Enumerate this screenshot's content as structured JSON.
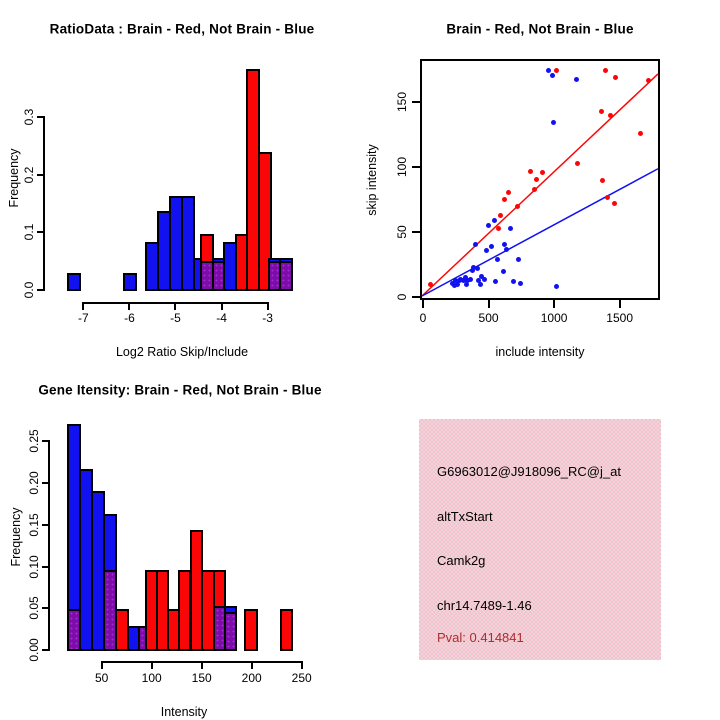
{
  "colors": {
    "red": "#fb0606",
    "blue": "#1212f0",
    "purple": "#7d0ca8",
    "purple_dot": "#a22ad4",
    "pink_bg": "#f5c0cc",
    "pink_bg_alt": "#edd6dc",
    "pval_text": "#b02c2c",
    "axis": "#000000"
  },
  "chart_data": [
    {
      "id": "ratio_hist",
      "type": "histogram",
      "title": "RatioData : Brain - Red, Not Brain - Blue",
      "xlabel": "Log2 Ratio Skip/Include",
      "ylabel": "Frequency",
      "legend_note": "Brain = red, Not Brain = blue, overlap = purple",
      "xlim": [
        -7.485,
        -2.21
      ],
      "ylim": [
        0,
        0.385
      ],
      "xticks": [
        -7,
        -6,
        -5,
        -4,
        -3
      ],
      "xtick_labels": [
        "-7",
        "-6",
        "-5",
        "-4",
        "-3"
      ],
      "ytick_vals": [
        0,
        0.1,
        0.2,
        0.3
      ],
      "ytick_labels": [
        "0.0",
        "0.1",
        "0.2",
        "0.3"
      ],
      "bars": [
        {
          "x0": -7.32,
          "x1": -7.06,
          "segments": [
            {
              "color": "blue",
              "top": 0.027
            }
          ]
        },
        {
          "x0": -6.1,
          "x1": -5.84,
          "segments": [
            {
              "color": "blue",
              "top": 0.027
            }
          ]
        },
        {
          "x0": -5.62,
          "x1": -5.36,
          "segments": [
            {
              "color": "blue",
              "top": 0.081
            }
          ]
        },
        {
          "x0": -5.36,
          "x1": -5.1,
          "segments": [
            {
              "color": "blue",
              "top": 0.135
            }
          ]
        },
        {
          "x0": -5.1,
          "x1": -4.84,
          "segments": [
            {
              "color": "blue",
              "top": 0.162
            }
          ]
        },
        {
          "x0": -4.84,
          "x1": -4.58,
          "segments": [
            {
              "color": "blue",
              "top": 0.162
            }
          ]
        },
        {
          "x0": -4.58,
          "x1": -4.32,
          "segments": [
            {
              "color": "blue",
              "top": 0.054
            }
          ]
        },
        {
          "x0": -4.42,
          "x1": -4.17,
          "segments": [
            {
              "color": "purple",
              "top": 0.048
            },
            {
              "color": "red",
              "top": 0.095
            }
          ]
        },
        {
          "x0": -4.17,
          "x1": -3.92,
          "segments": [
            {
              "color": "purple",
              "top": 0.048
            },
            {
              "color": "blue",
              "top": 0.054
            }
          ]
        },
        {
          "x0": -3.92,
          "x1": -3.67,
          "segments": [
            {
              "color": "blue",
              "top": 0.081
            }
          ]
        },
        {
          "x0": -3.67,
          "x1": -3.42,
          "segments": [
            {
              "color": "red",
              "top": 0.095
            }
          ]
        },
        {
          "x0": -3.42,
          "x1": -3.16,
          "segments": [
            {
              "color": "red",
              "top": 0.381
            }
          ]
        },
        {
          "x0": -3.16,
          "x1": -2.9,
          "segments": [
            {
              "color": "red",
              "top": 0.238
            }
          ]
        },
        {
          "x0": -2.95,
          "x1": -2.7,
          "segments": [
            {
              "color": "purple",
              "top": 0.048
            },
            {
              "color": "blue",
              "top": 0.054
            }
          ]
        },
        {
          "x0": -2.7,
          "x1": -2.45,
          "segments": [
            {
              "color": "purple",
              "top": 0.048
            },
            {
              "color": "blue",
              "top": 0.054
            }
          ]
        }
      ]
    },
    {
      "id": "scatter",
      "type": "scatter",
      "title": "Brain - Red, Not Brain - Blue",
      "xlabel": "include intensity",
      "ylabel": "skip intensity",
      "xlim": [
        0,
        1800
      ],
      "ylim": [
        0,
        181
      ],
      "xticks": [
        0,
        500,
        1000,
        1500
      ],
      "xtick_labels": [
        "0",
        "500",
        "1000",
        "1500"
      ],
      "ytick_vals": [
        0,
        50,
        100,
        150
      ],
      "ytick_labels": [
        "0",
        "50",
        "100",
        "150"
      ],
      "series": [
        {
          "name": "Brain",
          "color": "red",
          "points": [
            [
              62,
              9
            ],
            [
              580,
              52
            ],
            [
              600,
              62
            ],
            [
              632,
              74
            ],
            [
              658,
              80
            ],
            [
              725,
              69
            ],
            [
              825,
              96
            ],
            [
              858,
              82
            ],
            [
              870,
              90
            ],
            [
              922,
              95
            ],
            [
              1027,
              174
            ],
            [
              1185,
              102
            ],
            [
              1372,
              142
            ],
            [
              1380,
              89
            ],
            [
              1402,
              174
            ],
            [
              1417,
              76
            ],
            [
              1440,
              139
            ],
            [
              1467,
              71
            ],
            [
              1477,
              168
            ],
            [
              1665,
              125
            ],
            [
              1725,
              166
            ]
          ]
        },
        {
          "name": "Not Brain",
          "color": "blue",
          "points": [
            [
              230,
              10
            ],
            [
              245,
              8
            ],
            [
              258,
              12
            ],
            [
              270,
              9
            ],
            [
              283,
              12
            ],
            [
              295,
              13
            ],
            [
              318,
              12
            ],
            [
              330,
              14
            ],
            [
              340,
              9
            ],
            [
              350,
              12
            ],
            [
              372,
              13
            ],
            [
              385,
              20
            ],
            [
              395,
              22
            ],
            [
              405,
              40
            ],
            [
              420,
              21
            ],
            [
              432,
              12
            ],
            [
              445,
              9
            ],
            [
              457,
              15
            ],
            [
              480,
              13
            ],
            [
              495,
              35
            ],
            [
              510,
              54
            ],
            [
              532,
              38
            ],
            [
              550,
              58
            ],
            [
              562,
              11
            ],
            [
              578,
              28
            ],
            [
              618,
              19
            ],
            [
              628,
              40
            ],
            [
              642,
              36
            ],
            [
              675,
              52
            ],
            [
              700,
              11
            ],
            [
              737,
              28
            ],
            [
              752,
              10
            ],
            [
              962,
              174
            ],
            [
              997,
              170
            ],
            [
              1000,
              134
            ],
            [
              1028,
              7
            ],
            [
              1178,
              167
            ]
          ]
        }
      ],
      "lines": [
        {
          "color": "red",
          "from": [
            0,
            0
          ],
          "to": [
            1800,
            171
          ]
        },
        {
          "color": "blue",
          "from": [
            0,
            0
          ],
          "to": [
            1800,
            98
          ]
        }
      ]
    },
    {
      "id": "gene_hist",
      "type": "histogram",
      "title": "Gene Itensity: Brain - Red, Not Brain - Blue",
      "xlabel": "Intensity",
      "ylabel": "Frequency",
      "legend_note": "Brain = red, Not Brain = blue, overlap = purple",
      "xlim": [
        15.3,
        252.3
      ],
      "ylim": [
        0,
        0.272
      ],
      "xticks": [
        50,
        100,
        150,
        200,
        250
      ],
      "xtick_labels": [
        "50",
        "100",
        "150",
        "200",
        "250"
      ],
      "ytick_vals": [
        0,
        0.05,
        0.1,
        0.15,
        0.2,
        0.25
      ],
      "ytick_labels": [
        "0.00",
        "0.05",
        "0.10",
        "0.15",
        "0.20",
        "0.25"
      ],
      "bars": [
        {
          "x0": 17.5,
          "x1": 29.5,
          "segments": [
            {
              "color": "purple",
              "top": 0.048
            },
            {
              "color": "blue",
              "top": 0.27
            }
          ]
        },
        {
          "x0": 29.5,
          "x1": 41.5,
          "segments": [
            {
              "color": "blue",
              "top": 0.216
            }
          ]
        },
        {
          "x0": 41.5,
          "x1": 53.5,
          "segments": [
            {
              "color": "blue",
              "top": 0.189
            }
          ]
        },
        {
          "x0": 53.5,
          "x1": 65.5,
          "segments": [
            {
              "color": "purple",
              "top": 0.095
            },
            {
              "color": "blue",
              "top": 0.162
            }
          ]
        },
        {
          "x0": 65.5,
          "x1": 77,
          "segments": [
            {
              "color": "red",
              "top": 0.048
            }
          ]
        },
        {
          "x0": 77,
          "x1": 88,
          "segments": [
            {
              "color": "blue",
              "top": 0.027
            }
          ]
        },
        {
          "x0": 88,
          "x1": 95,
          "segments": [
            {
              "color": "purple",
              "top": 0.027
            }
          ]
        },
        {
          "x0": 95,
          "x1": 106,
          "segments": [
            {
              "color": "red",
              "top": 0.095
            }
          ]
        },
        {
          "x0": 106,
          "x1": 117,
          "segments": [
            {
              "color": "red",
              "top": 0.095
            }
          ]
        },
        {
          "x0": 117,
          "x1": 128,
          "segments": [
            {
              "color": "red",
              "top": 0.048
            }
          ]
        },
        {
          "x0": 128,
          "x1": 139.5,
          "segments": [
            {
              "color": "red",
              "top": 0.095
            }
          ]
        },
        {
          "x0": 140,
          "x1": 151.5,
          "segments": [
            {
              "color": "red",
              "top": 0.143
            }
          ]
        },
        {
          "x0": 151.5,
          "x1": 163,
          "segments": [
            {
              "color": "red",
              "top": 0.095
            }
          ]
        },
        {
          "x0": 163,
          "x1": 174,
          "segments": [
            {
              "color": "purple",
              "top": 0.052
            },
            {
              "color": "red",
              "top": 0.095
            }
          ]
        },
        {
          "x0": 174,
          "x1": 185,
          "segments": [
            {
              "color": "purple",
              "top": 0.044
            },
            {
              "color": "blue",
              "top": 0.052
            }
          ]
        },
        {
          "x0": 194.5,
          "x1": 206,
          "segments": [
            {
              "color": "red",
              "top": 0.048
            }
          ]
        },
        {
          "x0": 230,
          "x1": 241.5,
          "segments": [
            {
              "color": "red",
              "top": 0.048
            }
          ]
        }
      ]
    }
  ],
  "info_box": {
    "lines": [
      {
        "text": "G6963012@J918096_RC@j_at",
        "color": "black"
      },
      {
        "text": "altTxStart",
        "color": "black"
      },
      {
        "text": "Camk2g",
        "color": "black"
      },
      {
        "text": "chr14.7489-1.46",
        "color": "black"
      },
      {
        "text": "Pval: 0.414841",
        "color": "pval"
      }
    ]
  }
}
